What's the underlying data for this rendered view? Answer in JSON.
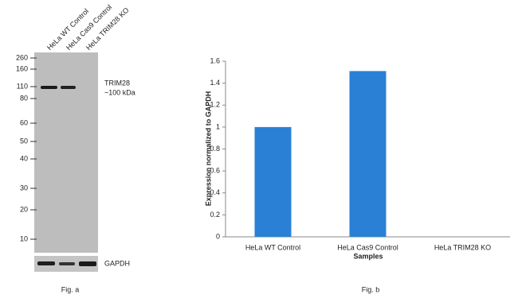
{
  "blot": {
    "lanes": [
      "HeLa WT Control",
      "HeLa Cas9 Control",
      "HeLa TRIM28 KO"
    ],
    "markers": [
      "260",
      "160",
      "110",
      "80",
      "60",
      "50",
      "40",
      "30",
      "20",
      "10"
    ],
    "target": "TRIM28",
    "target_size": "~100 kDa",
    "loading_control": "GAPDH",
    "caption": "Fig. a"
  },
  "chart_data": {
    "type": "bar",
    "caption": "Fig. b",
    "x_label": "Samples",
    "y_label": "Expression normalized to GAPDH",
    "categories": [
      "HeLa WT Control",
      "HeLa Cas9 Control",
      "HeLa TRIM28 KO"
    ],
    "values": [
      1,
      1.51,
      0
    ],
    "color": "#2a80d5",
    "ylim": [
      0,
      1.6
    ],
    "yticks": [
      0,
      0.2,
      0.4,
      0.6,
      0.8,
      1,
      1.2,
      1.4,
      1.6
    ],
    "grid": false
  }
}
